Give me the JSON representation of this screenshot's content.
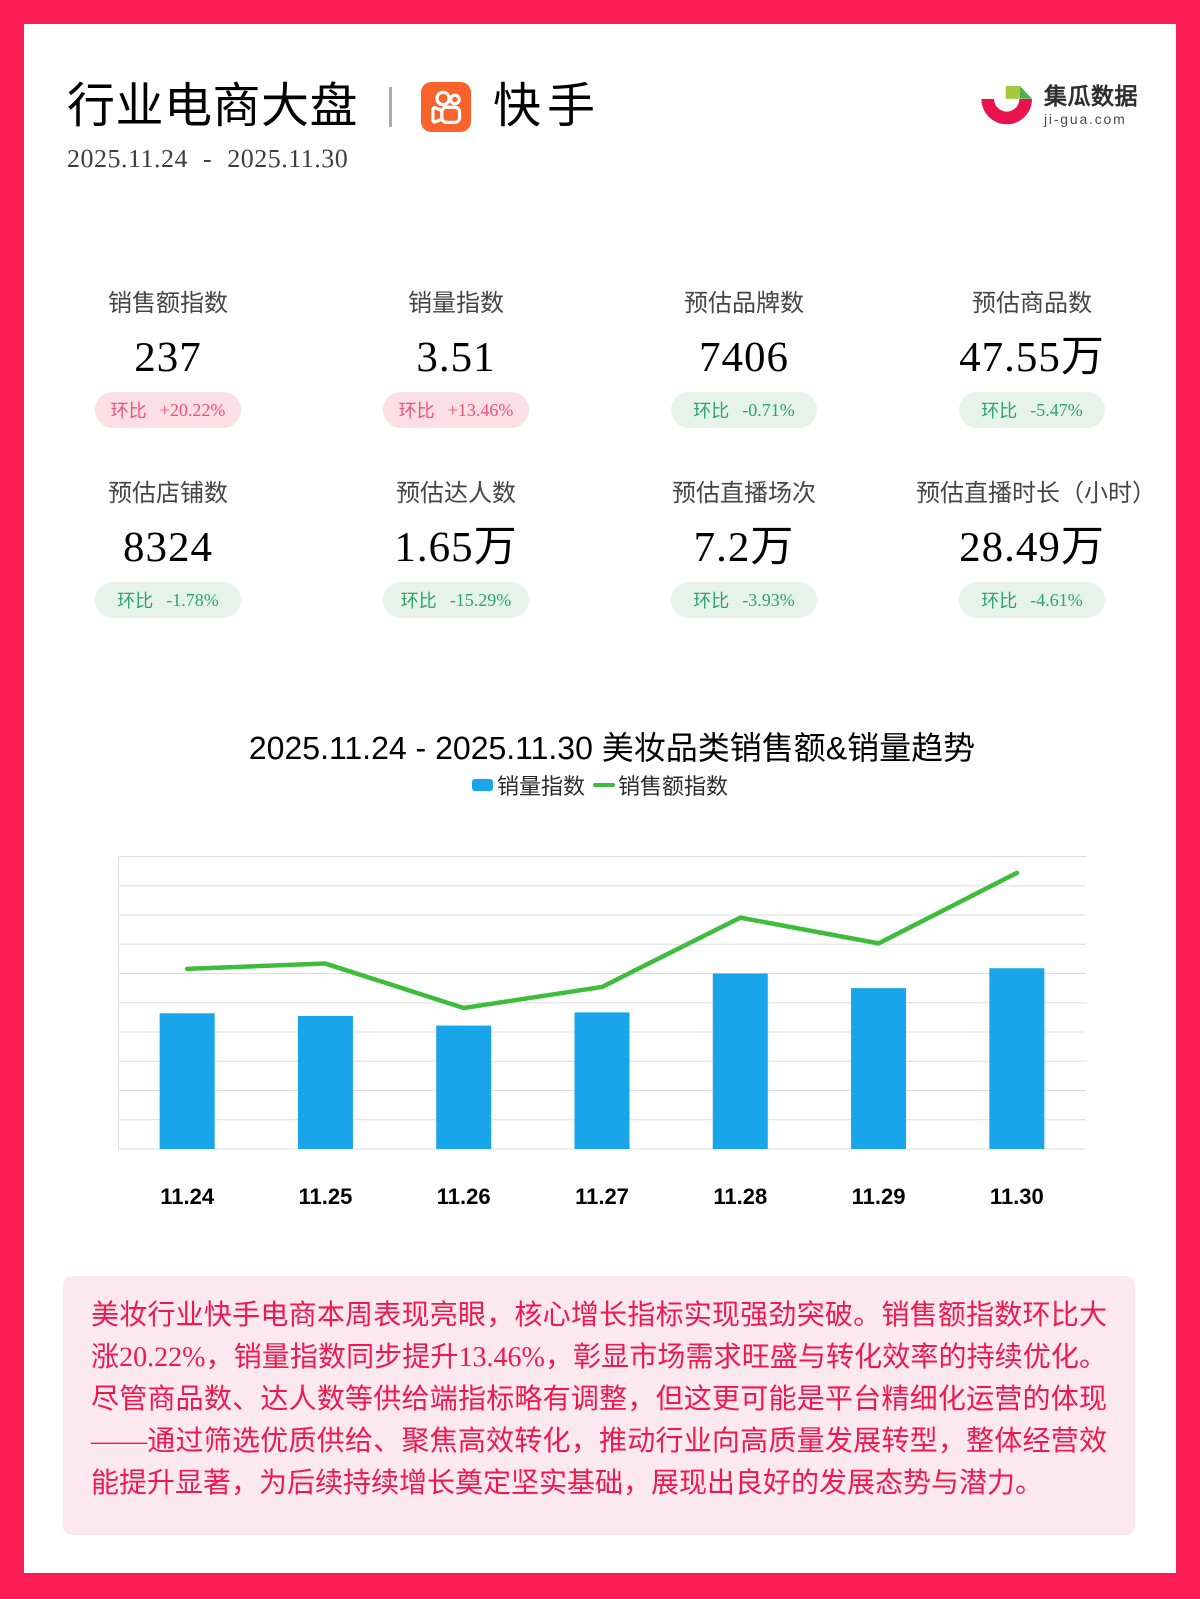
{
  "header": {
    "title": "行业电商大盘",
    "platform": "快手",
    "date_range": "2025.11.24 - 2025.11.30",
    "brand_name": "集瓜数据",
    "brand_domain": "ji-gua.com"
  },
  "metrics": [
    {
      "label": "销售额指数",
      "value": "237",
      "change_label": "环比",
      "change": "+20.22%",
      "direction": "up"
    },
    {
      "label": "销量指数",
      "value": "3.51",
      "change_label": "环比",
      "change": "+13.46%",
      "direction": "up"
    },
    {
      "label": "预估品牌数",
      "value": "7406",
      "change_label": "环比",
      "change": "-0.71%",
      "direction": "down"
    },
    {
      "label": "预估商品数",
      "value": "47.55万",
      "change_label": "环比",
      "change": "-5.47%",
      "direction": "down"
    },
    {
      "label": "预估店铺数",
      "value": "8324",
      "change_label": "环比",
      "change": "-1.78%",
      "direction": "down"
    },
    {
      "label": "预估达人数",
      "value": "1.65万",
      "change_label": "环比",
      "change": "-15.29%",
      "direction": "down"
    },
    {
      "label": "预估直播场次",
      "value": "7.2万",
      "change_label": "环比",
      "change": "-3.93%",
      "direction": "down"
    },
    {
      "label": "预估直播时长（小时）",
      "value": "28.49万",
      "change_label": "环比",
      "change": "-4.61%",
      "direction": "down"
    }
  ],
  "chart_data": {
    "type": "bar+line",
    "title": "2025.11.24 - 2025.11.30 美妆品类销售额&销量趋势",
    "categories": [
      "11.24",
      "11.25",
      "11.26",
      "11.27",
      "11.28",
      "11.29",
      "11.30"
    ],
    "series": [
      {
        "name": "销量指数",
        "type": "bar",
        "values": [
          4.64,
          4.55,
          4.22,
          4.67,
          6.0,
          5.5,
          6.18
        ]
      },
      {
        "name": "销售额指数",
        "type": "line",
        "values": [
          6.16,
          6.34,
          4.82,
          5.54,
          7.91,
          7.03,
          9.44
        ]
      }
    ],
    "ylim": [
      0,
      10
    ],
    "gridline_count": 11,
    "legend_position": "top",
    "grid": true,
    "note": "y axis has no tick labels; series values estimated in gridline units (1 unit per gridline interval)"
  },
  "summary": {
    "text": "美妆行业快手电商本周表现亮眼，核心增长指标实现强劲突破。销售额指数环比大涨20.22%，销量指数同步提升13.46%，彰显市场需求旺盛与转化效率的持续优化。尽管商品数、达人数等供给端指标略有调整，但这更可能是平台精细化运营的体现——通过筛选优质供给、聚焦高效转化，推动行业向高质量发展转型，整体经营效能提升显著，为后续持续增长奠定坚实基础，展现出良好的发展态势与潜力。"
  },
  "colors": {
    "frame": "#FB1E55",
    "kuaishou_orange": "#F9622B",
    "logo_red": "#E9134E",
    "logo_green_light": "#A4C83E",
    "logo_green_dark": "#53AE50",
    "badge_up_bg": "#FCDEE7",
    "badge_up_text": "#F0517A",
    "badge_down_bg": "#E5F3EA",
    "badge_down_text": "#2EA465",
    "bar_blue": "#18A5E9",
    "line_green": "#3EBD3C",
    "gridline": "#DDDDDD",
    "summary_bg": "#FCE9EF",
    "summary_text": "#F0194F"
  }
}
